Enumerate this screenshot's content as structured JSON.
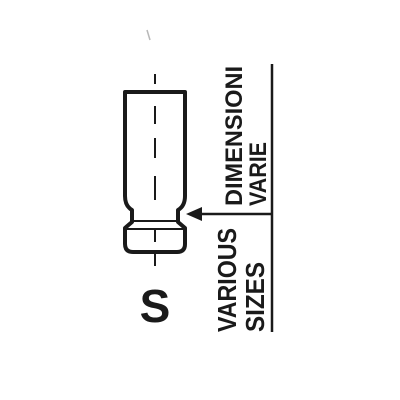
{
  "part_code": "S",
  "label_it_line1": "DIMENSIONI",
  "label_it_line2": "VARIE",
  "label_en_line1": "VARIOUS",
  "label_en_line2": "SIZES",
  "colors": {
    "ink": "#1a1a1a",
    "background": "#ffffff"
  }
}
